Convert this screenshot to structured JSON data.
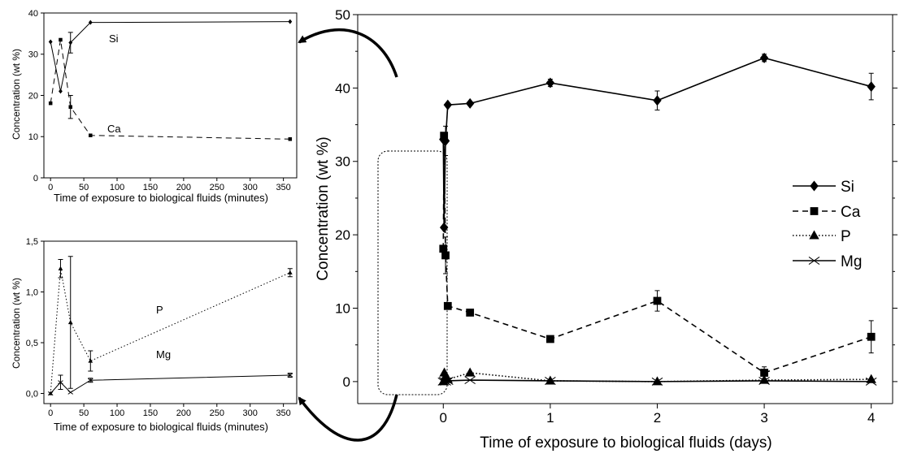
{
  "chart_data": [
    {
      "id": "main",
      "type": "line",
      "xlabel": "Time of exposure to biological fluids (days)",
      "ylabel": "Concentration (wt %)",
      "xlim": [
        -0.8,
        4.2
      ],
      "ylim": [
        -3,
        50
      ],
      "xticks": [
        0,
        1,
        2,
        3,
        4
      ],
      "yticks": [
        0,
        10,
        20,
        30,
        40,
        50
      ],
      "legend_position": "right",
      "series": [
        {
          "name": "Si",
          "marker": "diamond",
          "dash": "solid",
          "x": [
            0,
            0.007,
            0.021,
            0.042,
            0.25,
            1,
            2,
            3,
            4
          ],
          "y": [
            33,
            21,
            32.8,
            37.7,
            37.9,
            40.7,
            38.3,
            44.1,
            40.2
          ],
          "err": [
            0,
            0,
            2,
            0,
            0,
            0.5,
            1.3,
            0.5,
            1.8
          ]
        },
        {
          "name": "Ca",
          "marker": "square",
          "dash": "dashed",
          "x": [
            0,
            0.007,
            0.021,
            0.042,
            0.25,
            1,
            2,
            3,
            4
          ],
          "y": [
            18.1,
            33.5,
            17.2,
            10.3,
            9.4,
            5.8,
            11,
            1.2,
            6.1
          ],
          "err": [
            0,
            0,
            2.5,
            0,
            0,
            0,
            1.4,
            0.8,
            2.2
          ]
        },
        {
          "name": "P",
          "marker": "triangle",
          "dash": "dotted",
          "x": [
            0,
            0.01,
            0.021,
            0.042,
            0.25,
            1,
            2,
            3,
            4
          ],
          "y": [
            0,
            1.2,
            0.7,
            0.3,
            1.2,
            0.1,
            0,
            0.2,
            0.3
          ],
          "err": [
            0,
            0,
            0,
            0,
            0,
            0,
            0,
            0,
            0
          ]
        },
        {
          "name": "Mg",
          "marker": "x",
          "dash": "solid",
          "x": [
            0,
            0.01,
            0.021,
            0.042,
            0.25,
            1,
            2,
            3,
            4
          ],
          "y": [
            0,
            0.1,
            0,
            0.1,
            0.2,
            0.1,
            0,
            0.1,
            0
          ],
          "err": [
            0,
            0,
            0,
            0,
            0,
            0,
            0,
            0,
            0
          ]
        }
      ]
    },
    {
      "id": "inset-top",
      "type": "line",
      "xlabel": "Time of exposure to biological fluids (minutes)",
      "ylabel": "Concentration (wt %)",
      "xlim": [
        -10,
        370
      ],
      "ylim": [
        0,
        40
      ],
      "xticks": [
        0,
        50,
        100,
        150,
        200,
        250,
        300,
        350
      ],
      "yticks": [
        0,
        10,
        20,
        30,
        40
      ],
      "series": [
        {
          "name": "Si",
          "marker": "diamond",
          "dash": "solid",
          "x": [
            0,
            15,
            30,
            60,
            360
          ],
          "y": [
            33,
            21,
            32.8,
            37.7,
            37.9
          ],
          "err": [
            0,
            0,
            2.5,
            0,
            0
          ]
        },
        {
          "name": "Ca",
          "marker": "square",
          "dash": "dashed",
          "x": [
            0,
            15,
            30,
            60,
            360
          ],
          "y": [
            18.1,
            33.5,
            17.2,
            10.3,
            9.4
          ],
          "err": [
            0,
            0,
            2.8,
            0,
            0
          ]
        }
      ]
    },
    {
      "id": "inset-bottom",
      "type": "line",
      "xlabel": "Time of exposure to biological fluids (minutes)",
      "ylabel": "Concentration (wt %)",
      "xlim": [
        -10,
        370
      ],
      "ylim": [
        -0.1,
        1.5
      ],
      "xticks": [
        0,
        50,
        100,
        150,
        200,
        250,
        300,
        350
      ],
      "yticks": [
        0,
        0.5,
        1,
        1.5
      ],
      "ytick_labels": [
        "0,0",
        "0,5",
        "1,0",
        "1,5"
      ],
      "series": [
        {
          "name": "P",
          "marker": "triangle",
          "dash": "dotted",
          "x": [
            0,
            15,
            30,
            60,
            360
          ],
          "y": [
            0,
            1.23,
            0.7,
            0.32,
            1.19
          ],
          "err": [
            0,
            0.09,
            0.65,
            0.1,
            0.04
          ]
        },
        {
          "name": "Mg",
          "marker": "x",
          "dash": "solid",
          "x": [
            0,
            15,
            30,
            60,
            360
          ],
          "y": [
            0,
            0.11,
            0.01,
            0.13,
            0.18
          ],
          "err": [
            0,
            0.07,
            0,
            0.02,
            0.02
          ]
        }
      ]
    }
  ]
}
